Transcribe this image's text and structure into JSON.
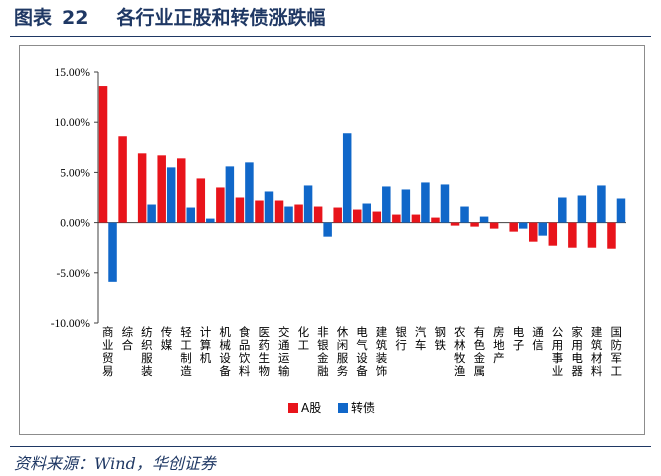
{
  "header": {
    "label": "图表",
    "number": "22",
    "title": "各行业正股和转债涨跌幅"
  },
  "source": "资料来源：Wind，华创证券",
  "chart_data": {
    "type": "bar",
    "title": "",
    "xlabel": "",
    "ylabel": "",
    "ylim": [
      -10,
      15
    ],
    "yticks": [
      "15.00%",
      "10.00%",
      "5.00%",
      "0.00%",
      "-5.00%",
      "-10.00%"
    ],
    "grid": false,
    "legend_position": "bottom-center",
    "categories": [
      "商业贸易",
      "综合",
      "纺织服装",
      "传媒",
      "轻工制造",
      "计算机",
      "机械设备",
      "食品饮料",
      "医药生物",
      "交通运输",
      "化工",
      "非银金融",
      "休闲服务",
      "电气设备",
      "建筑装饰",
      "银行",
      "汽车",
      "钢铁",
      "农林牧渔",
      "有色金属",
      "房地产",
      "电子",
      "通信",
      "公用事业",
      "家用电器",
      "建筑材料",
      "国防军工"
    ],
    "series": [
      {
        "name": "A股",
        "color": "#e8141b",
        "values": [
          13.6,
          8.6,
          6.9,
          6.7,
          6.4,
          4.4,
          3.5,
          2.5,
          2.2,
          2.2,
          1.8,
          1.6,
          1.5,
          1.3,
          1.1,
          0.8,
          0.8,
          0.5,
          -0.3,
          -0.4,
          -0.6,
          -0.9,
          -1.9,
          -2.3,
          -2.5,
          -2.5,
          -2.6
        ]
      },
      {
        "name": "转债",
        "color": "#1067c9",
        "values": [
          -5.9,
          0.0,
          1.8,
          5.5,
          1.5,
          0.4,
          5.6,
          6.0,
          3.1,
          1.6,
          3.7,
          -1.4,
          8.9,
          1.9,
          3.6,
          3.3,
          4.0,
          3.8,
          1.6,
          0.6,
          0.0,
          -0.6,
          -1.3,
          2.5,
          2.7,
          3.7,
          2.4
        ]
      }
    ]
  }
}
